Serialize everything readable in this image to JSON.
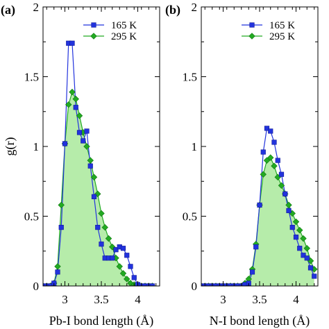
{
  "colors": {
    "series_165": "#2233dd",
    "series_295": "#22aa22",
    "fill_295": "#b6ecaa"
  },
  "chart_data": [
    {
      "type": "line",
      "panel_label": "(a)",
      "title": "",
      "xlabel": "Pb-I bond length (Å)",
      "ylabel": "g(r)",
      "xlim": [
        2.7,
        4.3
      ],
      "ylim": [
        0,
        2
      ],
      "xticks": [
        3,
        3.5,
        4
      ],
      "xtick_labels": [
        "3",
        "3.5",
        "4"
      ],
      "yticks": [
        0,
        0.5,
        1,
        1.5,
        2
      ],
      "ytick_labels": [
        "0",
        "0.5",
        "1",
        "1.5",
        "2"
      ],
      "legend_position": "top-right",
      "series": [
        {
          "name": "165 K",
          "marker": "square",
          "x": [
            2.7,
            2.75,
            2.8,
            2.85,
            2.9,
            2.95,
            3.0,
            3.05,
            3.1,
            3.15,
            3.2,
            3.25,
            3.3,
            3.35,
            3.4,
            3.45,
            3.5,
            3.55,
            3.6,
            3.65,
            3.7,
            3.75,
            3.8,
            3.85,
            3.9,
            3.95,
            4.0,
            4.05,
            4.1,
            4.15,
            4.2
          ],
          "values": [
            0,
            0,
            0,
            0.02,
            0.1,
            0.42,
            1.02,
            1.74,
            1.74,
            1.28,
            1.1,
            1.04,
            1.11,
            0.86,
            0.64,
            0.42,
            0.3,
            0.2,
            0.2,
            0.2,
            0.26,
            0.28,
            0.27,
            0.22,
            0.14,
            0.06,
            0.01,
            0,
            0,
            0,
            0
          ]
        },
        {
          "name": "295 K",
          "marker": "diamond",
          "fill": true,
          "x": [
            2.7,
            2.75,
            2.8,
            2.85,
            2.9,
            2.95,
            3.0,
            3.05,
            3.1,
            3.15,
            3.2,
            3.25,
            3.3,
            3.35,
            3.4,
            3.45,
            3.5,
            3.55,
            3.6,
            3.65,
            3.7,
            3.75,
            3.8,
            3.85,
            3.9,
            3.95,
            4.0,
            4.05,
            4.1,
            4.15,
            4.2
          ],
          "values": [
            0,
            0,
            0,
            0.02,
            0.14,
            0.58,
            1.02,
            1.3,
            1.39,
            1.34,
            1.22,
            1.1,
            1.0,
            0.9,
            0.78,
            0.66,
            0.52,
            0.42,
            0.34,
            0.28,
            0.2,
            0.14,
            0.09,
            0.05,
            0.02,
            0.01,
            0,
            0,
            0,
            0,
            0
          ]
        }
      ]
    },
    {
      "type": "line",
      "panel_label": "(b)",
      "title": "",
      "xlabel": "N-I bond length (Å)",
      "ylabel": "",
      "xlim": [
        2.7,
        4.3
      ],
      "ylim": [
        0,
        2
      ],
      "xticks": [
        3,
        3.5,
        4
      ],
      "xtick_labels": [
        "3",
        "3.5",
        "4"
      ],
      "yticks": [
        0,
        0.5,
        1,
        1.5,
        2
      ],
      "ytick_labels": [
        "0",
        "0.5",
        "1",
        "1.5",
        "2"
      ],
      "legend_position": "top-right",
      "series": [
        {
          "name": "165 K",
          "marker": "square",
          "x": [
            2.7,
            2.75,
            2.8,
            2.85,
            2.9,
            2.95,
            3.0,
            3.05,
            3.1,
            3.15,
            3.2,
            3.25,
            3.3,
            3.35,
            3.4,
            3.45,
            3.5,
            3.55,
            3.6,
            3.65,
            3.7,
            3.75,
            3.8,
            3.85,
            3.9,
            3.95,
            4.0,
            4.05,
            4.1,
            4.15,
            4.2,
            4.25
          ],
          "values": [
            0,
            0,
            0,
            0,
            0,
            0,
            0,
            0,
            0,
            0,
            0,
            0,
            0.01,
            0.02,
            0.1,
            0.28,
            0.58,
            0.96,
            1.13,
            1.11,
            1.03,
            0.9,
            0.8,
            0.66,
            0.54,
            0.42,
            0.35,
            0.27,
            0.22,
            0.2,
            0.13,
            0.07
          ]
        },
        {
          "name": "295 K",
          "marker": "diamond",
          "fill": true,
          "x": [
            2.7,
            2.75,
            2.8,
            2.85,
            2.9,
            2.95,
            3.0,
            3.05,
            3.1,
            3.15,
            3.2,
            3.25,
            3.3,
            3.35,
            3.4,
            3.45,
            3.5,
            3.55,
            3.6,
            3.65,
            3.7,
            3.75,
            3.8,
            3.85,
            3.9,
            3.95,
            4.0,
            4.05,
            4.1,
            4.15,
            4.2,
            4.25
          ],
          "values": [
            0,
            0,
            0,
            0,
            0,
            0,
            0,
            0,
            0,
            0,
            0,
            0,
            0.02,
            0.05,
            0.12,
            0.3,
            0.58,
            0.8,
            0.9,
            0.92,
            0.86,
            0.78,
            0.72,
            0.66,
            0.58,
            0.52,
            0.46,
            0.4,
            0.34,
            0.27,
            0.18,
            0.12
          ]
        }
      ]
    }
  ]
}
